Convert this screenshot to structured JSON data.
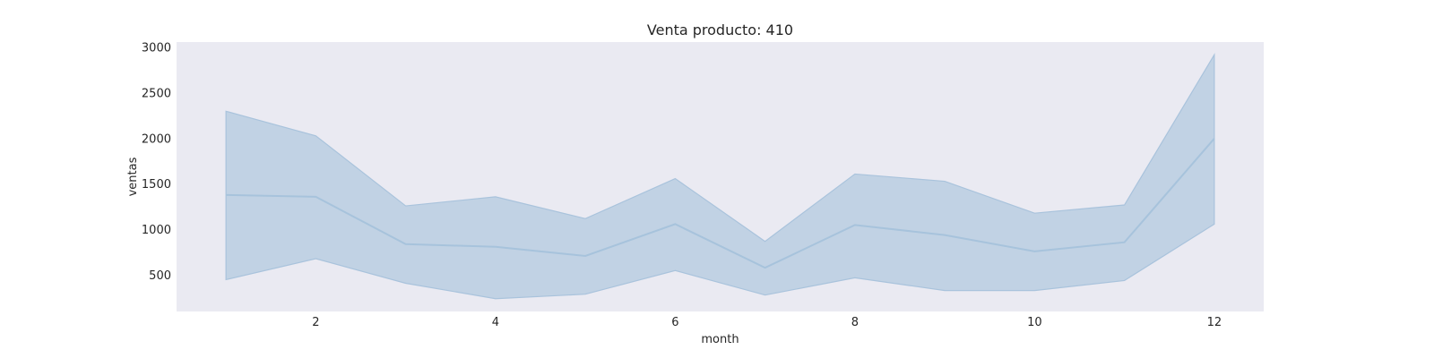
{
  "chart_data": {
    "type": "line",
    "title": "Venta producto: 410",
    "xlabel": "month",
    "ylabel": "ventas",
    "x": [
      1,
      2,
      3,
      4,
      5,
      6,
      7,
      8,
      9,
      10,
      11,
      12
    ],
    "series": [
      {
        "values": [
          1380,
          1360,
          840,
          810,
          710,
          1060,
          580,
          1050,
          940,
          760,
          860,
          2000
        ],
        "ci_lower": [
          450,
          680,
          410,
          240,
          290,
          550,
          280,
          470,
          330,
          330,
          440,
          1060
        ],
        "ci_upper": [
          2300,
          2030,
          1260,
          1360,
          1120,
          1560,
          870,
          1610,
          1530,
          1180,
          1270,
          2920
        ]
      }
    ],
    "xlim": [
      0.45,
      12.55
    ],
    "ylim": [
      100,
      3060
    ],
    "xticks": [
      2,
      4,
      6,
      8,
      10,
      12
    ],
    "yticks": [
      500,
      1000,
      1500,
      2000,
      2500,
      3000
    ],
    "grid": false,
    "legend": "none",
    "colors": {
      "plot_background": "#eaeaf2",
      "line": "#a7c3dc",
      "band": "#c1d2e4",
      "band_edge": "#a9c3dc",
      "text": "#262626"
    }
  }
}
